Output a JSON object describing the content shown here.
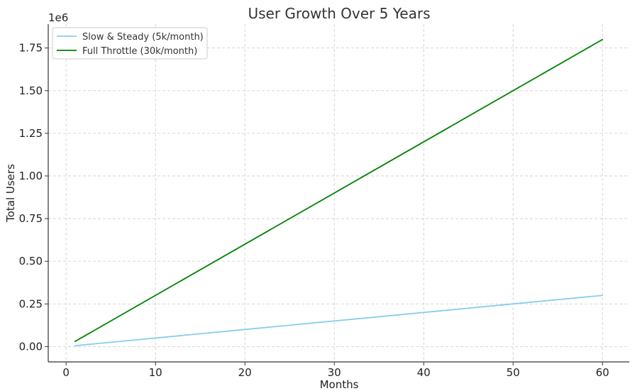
{
  "chart_data": {
    "type": "line",
    "title": "User Growth Over 5 Years",
    "xlabel": "Months",
    "ylabel": "Total Users",
    "y_offset_label": "1e6",
    "xlim": [
      -2,
      63
    ],
    "ylim": [
      -90000,
      1890000
    ],
    "x_ticks": [
      0,
      10,
      20,
      30,
      40,
      50,
      60
    ],
    "x_tick_labels": [
      "0",
      "10",
      "20",
      "30",
      "40",
      "50",
      "60"
    ],
    "y_ticks": [
      0,
      250000,
      500000,
      750000,
      1000000,
      1250000,
      1500000,
      1750000
    ],
    "y_tick_labels": [
      "0.00",
      "0.25",
      "0.50",
      "0.75",
      "1.00",
      "1.25",
      "1.50",
      "1.75"
    ],
    "grid": true,
    "legend_position": "top-left",
    "series": [
      {
        "name": "Slow & Steady (5k/month)",
        "color": "#87CEEB",
        "x": [
          1,
          60
        ],
        "y": [
          5000,
          300000
        ]
      },
      {
        "name": "Full Throttle (30k/month)",
        "color": "#008000",
        "x": [
          1,
          60
        ],
        "y": [
          30000,
          1800000
        ]
      }
    ]
  }
}
